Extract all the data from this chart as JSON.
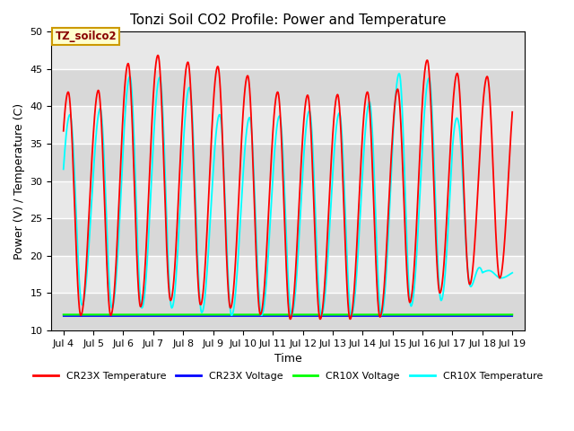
{
  "title": "Tonzi Soil CO2 Profile: Power and Temperature",
  "ylabel": "Power (V) / Temperature (C)",
  "xlabel": "Time",
  "ylim": [
    10,
    50
  ],
  "xtick_labels": [
    "Jul 4",
    "Jul 5",
    "Jul 6",
    "Jul 7",
    "Jul 8",
    "Jul 9",
    "Jul 10",
    "Jul 11",
    "Jul 12",
    "Jul 13",
    "Jul 14",
    "Jul 15",
    "Jul 16",
    "Jul 17",
    "Jul 18",
    "Jul 19"
  ],
  "annotation_text": "TZ_soilco2",
  "background_color": "#e8e8e8",
  "grid_color": "#d0d0d0",
  "title_fontsize": 11,
  "tick_fontsize": 8,
  "label_fontsize": 9,
  "cr23x_peaks": [
    12.0,
    42.0,
    12.0,
    41.5,
    12.0,
    45.5,
    47.0,
    46.0,
    45.5,
    44.5,
    42.0,
    41.5,
    41.5,
    42.0,
    41.5,
    46.5,
    44.5
  ],
  "cr10x_peaks": [
    15.0,
    39.0,
    13.0,
    38.5,
    13.0,
    44.0,
    44.0,
    43.5,
    39.0,
    38.5,
    38.5,
    39.5,
    39.0,
    39.5,
    44.5,
    44.0,
    18.0
  ],
  "voltage_level_cr23x": 11.9,
  "voltage_level_cr10x": 12.1
}
